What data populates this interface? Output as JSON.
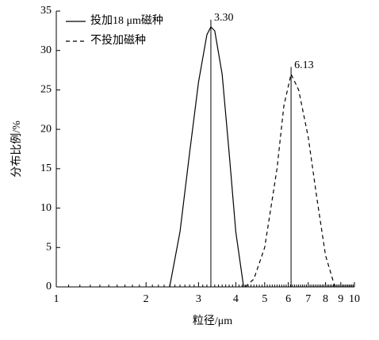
{
  "chart_data": {
    "type": "line",
    "x_label": "粒径/μm",
    "y_label": "分布比例/%",
    "log_x": true,
    "xlim": [
      1,
      10
    ],
    "xticks": [
      1,
      2,
      3,
      4,
      5,
      6,
      7,
      8,
      9,
      10
    ],
    "ylim": [
      0,
      35
    ],
    "yticks": [
      0,
      5,
      10,
      15,
      20,
      25,
      30,
      35
    ],
    "legend_position": "upper left",
    "series": [
      {
        "name": "投加18 μm磁种",
        "color": "#000000",
        "dash": "solid",
        "x": [
          2.4,
          2.6,
          2.8,
          3.0,
          3.2,
          3.3,
          3.4,
          3.6,
          3.8,
          4.0,
          4.25
        ],
        "values": [
          0,
          7,
          17,
          26,
          32,
          33,
          32.5,
          27,
          17,
          7,
          0
        ]
      },
      {
        "name": "不投加磁种",
        "color": "#000000",
        "dash": "dashed",
        "x": [
          4.3,
          4.6,
          5.0,
          5.5,
          5.8,
          6.13,
          6.5,
          7.0,
          7.5,
          8.0,
          8.6
        ],
        "values": [
          0,
          1,
          5,
          15,
          23,
          27,
          25,
          19,
          11,
          4,
          0
        ]
      }
    ],
    "markers": [
      {
        "value": 3.3,
        "label": "3.30"
      },
      {
        "value": 6.13,
        "label": "6.13"
      }
    ]
  }
}
